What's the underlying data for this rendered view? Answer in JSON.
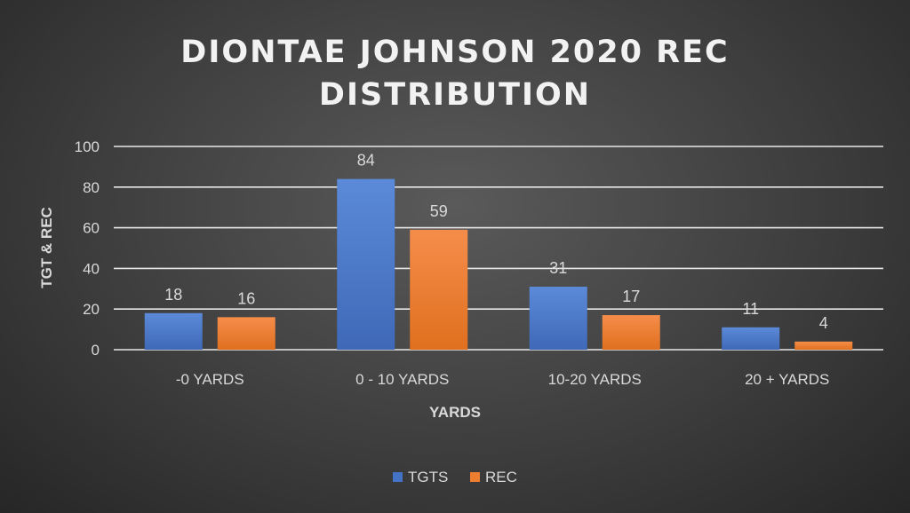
{
  "chart_data": {
    "type": "bar",
    "title_lines": [
      "DIONTAE JOHNSON 2020 REC",
      "DISTRIBUTION"
    ],
    "categories": [
      "-0 YARDS",
      "0 - 10 YARDS",
      "10-20 YARDS",
      "20 + YARDS"
    ],
    "series": [
      {
        "name": "TGTS",
        "values": [
          18,
          84,
          31,
          11
        ],
        "color": "#4472c4"
      },
      {
        "name": "REC",
        "values": [
          16,
          59,
          17,
          4
        ],
        "color": "#ed7d31"
      }
    ],
    "xlabel": "YARDS",
    "ylabel": "TGT & REC",
    "ylim": [
      0,
      100
    ],
    "yticks": [
      0,
      20,
      40,
      60,
      80,
      100
    ],
    "grid": true,
    "legend_position": "bottom"
  }
}
